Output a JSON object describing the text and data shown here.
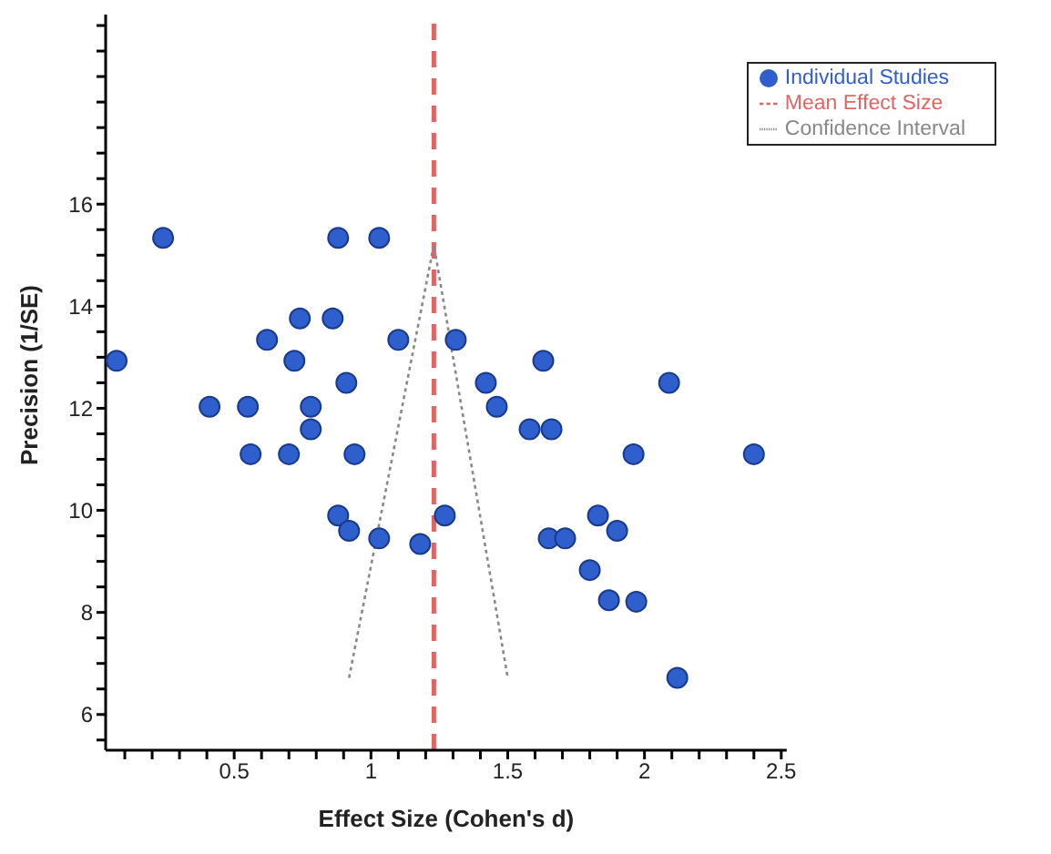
{
  "chart_data": {
    "type": "scatter",
    "xlabel": "Effect Size (Cohen's d)",
    "ylabel": "Precision (1/SE)",
    "xlim": [
      0.03,
      2.52
    ],
    "ylim": [
      5.3,
      20
    ],
    "xticks": [
      {
        "value": 0.1,
        "label": null
      },
      {
        "value": 0.2,
        "label": null
      },
      {
        "value": 0.3,
        "label": null
      },
      {
        "value": 0.4,
        "label": null
      },
      0.5,
      {
        "value": 0.6,
        "label": null
      },
      {
        "value": 0.7,
        "label": null
      },
      {
        "value": 0.8,
        "label": null
      },
      {
        "value": 0.9,
        "label": null
      },
      1,
      {
        "value": 1.1,
        "label": null
      },
      {
        "value": 1.2,
        "label": null
      },
      {
        "value": 1.3,
        "label": null
      },
      {
        "value": 1.4,
        "label": null
      },
      1.5,
      {
        "value": 1.6,
        "label": null
      },
      {
        "value": 1.7,
        "label": null
      },
      {
        "value": 1.8,
        "label": null
      },
      {
        "value": 1.9,
        "label": null
      },
      2,
      {
        "value": 2.1,
        "label": null
      },
      {
        "value": 2.2,
        "label": null
      },
      {
        "value": 2.3,
        "label": null
      },
      {
        "value": 2.4,
        "label": null
      },
      2.5
    ],
    "yticks": [
      {
        "value": 5.5,
        "label": null
      },
      6,
      {
        "value": 6.5,
        "label": null
      },
      {
        "value": 7,
        "label": null
      },
      {
        "value": 7.5,
        "label": null
      },
      8,
      {
        "value": 8.5,
        "label": null
      },
      {
        "value": 9,
        "label": null
      },
      {
        "value": 9.5,
        "label": null
      },
      10,
      {
        "value": 10.5,
        "label": null
      },
      {
        "value": 11,
        "label": null
      },
      {
        "value": 11.5,
        "label": null
      },
      12,
      {
        "value": 12.5,
        "label": null
      },
      {
        "value": 13,
        "label": null
      },
      {
        "value": 13.5,
        "label": null
      },
      14,
      {
        "value": 14.5,
        "label": null
      },
      {
        "value": 15,
        "label": null
      },
      {
        "value": 15.5,
        "label": null
      },
      16,
      {
        "value": 16.5,
        "label": null
      },
      {
        "value": 17,
        "label": null
      },
      {
        "value": 17.5,
        "label": null
      },
      {
        "value": 18,
        "label": null
      },
      {
        "value": 18.5,
        "label": null
      },
      {
        "value": 19,
        "label": null
      },
      {
        "value": 19.5,
        "label": null
      }
    ],
    "grid": false,
    "legend": "top right",
    "marker": "circle",
    "series": [
      {
        "name": "Individual Studies",
        "color": "#2f5fcc",
        "x": [
          0.07,
          0.24,
          0.41,
          0.55,
          0.56,
          0.62,
          0.7,
          0.72,
          0.74,
          0.78,
          0.78,
          0.86,
          0.88,
          0.91,
          0.94,
          1.03,
          1.1,
          0.88,
          0.92,
          1.03,
          1.18,
          1.27,
          1.65,
          1.71,
          1.83,
          1.9,
          1.8,
          1.87,
          1.97,
          2.12,
          1.31,
          1.63,
          1.42,
          1.46,
          1.58,
          1.66,
          2.09,
          1.96,
          2.4
        ],
        "values": [
          12.93,
          15.34,
          12.03,
          12.03,
          11.1,
          13.34,
          11.1,
          12.93,
          13.76,
          12.03,
          11.59,
          13.76,
          15.34,
          12.5,
          11.1,
          15.34,
          13.34,
          9.9,
          9.6,
          9.45,
          9.34,
          9.9,
          9.45,
          9.45,
          9.9,
          9.6,
          8.83,
          8.24,
          8.21,
          6.72,
          13.34,
          12.93,
          12.5,
          12.03,
          11.59,
          11.59,
          12.5,
          11.1,
          11.1
        ]
      },
      {
        "name": "Confidence Interval",
        "type": "line",
        "color": "#888888",
        "line_style": "dotted",
        "marker": "none",
        "x": [
          0.92,
          1.23,
          1.5
        ],
        "values": [
          6.72,
          15.2,
          6.72
        ]
      }
    ],
    "ref_lines": [
      {
        "axis": "x",
        "value": 1.23,
        "label": "Mean Effect Size",
        "color": "#e06666",
        "line_style": "dashed"
      }
    ]
  }
}
